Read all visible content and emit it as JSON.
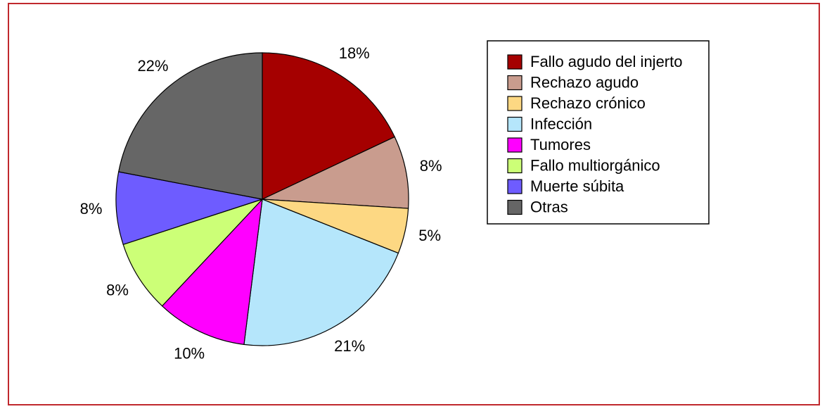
{
  "chart_data": {
    "type": "pie",
    "categories": [
      "Fallo agudo del injerto",
      "Rechazo agudo",
      "Rechazo crónico",
      "Infección",
      "Tumores",
      "Fallo multiorgánico",
      "Muerte súbita",
      "Otras"
    ],
    "values": [
      18,
      8,
      5,
      21,
      10,
      8,
      8,
      22
    ],
    "value_labels": [
      "18%",
      "8%",
      "5%",
      "21%",
      "10%",
      "8%",
      "8%",
      "22%"
    ],
    "colors": [
      "#a50000",
      "#c99c8e",
      "#fdd883",
      "#b5e6fb",
      "#ff00ff",
      "#ccff77",
      "#6e5cff",
      "#666666"
    ],
    "legend": "right"
  }
}
